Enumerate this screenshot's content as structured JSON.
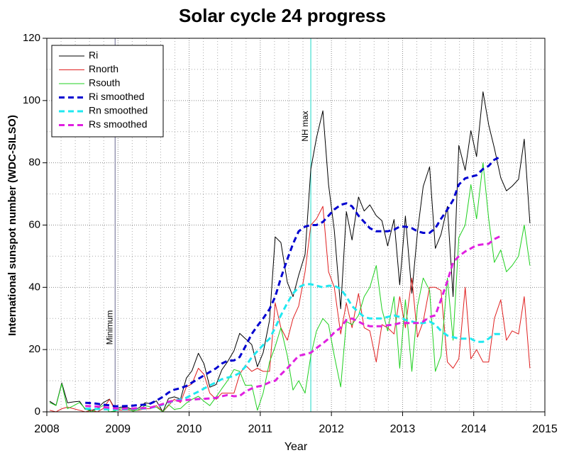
{
  "chart_data": {
    "type": "line",
    "title": "Solar cycle 24 progress",
    "x_label": "Year",
    "y_label": "International sunspot number (WDC-SILSO)",
    "xlim": [
      2008,
      2015
    ],
    "xticks": [
      2008,
      2009,
      2010,
      2011,
      2012,
      2013,
      2014,
      2015
    ],
    "ylim": [
      0,
      120
    ],
    "yticks": [
      0,
      20,
      40,
      60,
      80,
      100,
      120
    ],
    "grid": true,
    "minor_subdivisions": {
      "x": 5,
      "y": 2
    },
    "legend": "upper left",
    "annotations": [
      {
        "x": 2008.96,
        "label": "Minimum",
        "color": "#8080a0"
      },
      {
        "x": 2011.71,
        "label": "NH max",
        "color": "#40e0d0"
      }
    ],
    "x": [
      2008.04,
      2008.13,
      2008.21,
      2008.29,
      2008.38,
      2008.46,
      2008.54,
      2008.63,
      2008.71,
      2008.79,
      2008.88,
      2008.96,
      2009.04,
      2009.13,
      2009.21,
      2009.29,
      2009.38,
      2009.46,
      2009.54,
      2009.63,
      2009.71,
      2009.79,
      2009.88,
      2009.96,
      2010.04,
      2010.13,
      2010.21,
      2010.29,
      2010.38,
      2010.46,
      2010.54,
      2010.63,
      2010.71,
      2010.79,
      2010.88,
      2010.96,
      2011.04,
      2011.13,
      2011.21,
      2011.29,
      2011.38,
      2011.46,
      2011.54,
      2011.63,
      2011.71,
      2011.79,
      2011.88,
      2011.96,
      2012.04,
      2012.13,
      2012.21,
      2012.29,
      2012.38,
      2012.46,
      2012.54,
      2012.63,
      2012.71,
      2012.79,
      2012.88,
      2012.96,
      2013.04,
      2013.13,
      2013.21,
      2013.29,
      2013.38,
      2013.46,
      2013.54,
      2013.63,
      2013.71,
      2013.79,
      2013.88,
      2013.96,
      2014.04,
      2014.13,
      2014.21,
      2014.29,
      2014.38,
      2014.46,
      2014.54,
      2014.63,
      2014.71,
      2014.79
    ],
    "series": [
      {
        "name": "Ri",
        "color": "#000000",
        "style": "solid",
        "values": [
          3.4,
          2.1,
          9.3,
          2.9,
          3.2,
          3.4,
          0.8,
          0.5,
          1.1,
          2.9,
          4.1,
          0.8,
          1.5,
          1.4,
          0.7,
          1.2,
          2.9,
          2.6,
          3.5,
          0.0,
          4.3,
          4.8,
          4.1,
          10.8,
          13.2,
          18.8,
          15.4,
          7.9,
          8.8,
          13.5,
          16.1,
          19.6,
          25.2,
          23.5,
          21.6,
          14.5,
          19.0,
          29.4,
          56.2,
          54.4,
          41.6,
          37.0,
          43.9,
          50.6,
          78.0,
          88.0,
          96.7,
          73.0,
          58.3,
          33.1,
          64.3,
          55.2,
          69.0,
          64.5,
          66.5,
          63.0,
          61.4,
          53.3,
          61.8,
          40.8,
          62.9,
          38.1,
          57.9,
          72.4,
          78.7,
          52.5,
          57.0,
          66.0,
          37.0,
          85.6,
          77.6,
          90.3,
          82.0,
          102.8,
          92.2,
          84.7,
          75.2,
          71.0,
          72.5,
          74.7,
          87.6,
          60.6
        ]
      },
      {
        "name": "Rnorth",
        "color": "#e02020",
        "style": "solid",
        "values": [
          0.5,
          0,
          1,
          1.5,
          1,
          0.5,
          0,
          0.5,
          0,
          1,
          4,
          0.5,
          0.5,
          0.5,
          0.5,
          0.5,
          1,
          1,
          2,
          0,
          2,
          4,
          3,
          8,
          9,
          14,
          12,
          6,
          4,
          6,
          6,
          6,
          12,
          15,
          13,
          14,
          13,
          13,
          35,
          27,
          23,
          30,
          34,
          45,
          60,
          62,
          66,
          45,
          40,
          25,
          35,
          27,
          38,
          27,
          26,
          16,
          28,
          27,
          25,
          37,
          27,
          43,
          24,
          29,
          40,
          40,
          39,
          16,
          14,
          17,
          40,
          17,
          20,
          16,
          16,
          30,
          36,
          23,
          26,
          25,
          37,
          14
        ]
      },
      {
        "name": "Rsouth",
        "color": "#20d020",
        "style": "solid",
        "values": [
          3,
          2,
          9,
          1,
          2,
          3,
          1,
          0,
          1,
          2,
          0,
          0.3,
          1,
          1,
          0.2,
          0.7,
          2,
          1.6,
          1.5,
          0,
          2.3,
          0.8,
          1.1,
          2.8,
          4,
          5,
          3.4,
          2,
          4.8,
          7.5,
          10,
          13.6,
          13,
          8.5,
          8.6,
          0.5,
          6,
          16,
          21,
          27,
          18,
          7,
          10,
          6,
          18,
          26,
          30,
          28,
          18,
          8,
          29,
          28,
          31,
          37,
          40,
          47,
          33,
          26,
          37,
          14,
          36,
          13,
          34,
          43,
          39,
          13,
          18,
          43,
          23,
          56,
          60,
          73,
          62,
          80,
          62,
          48,
          52,
          45,
          47,
          50,
          60,
          47
        ]
      },
      {
        "name": "Ri smoothed",
        "color": "#0000d0",
        "style": "dashed",
        "values": [
          null,
          null,
          null,
          null,
          null,
          null,
          2.9,
          2.8,
          2.6,
          2.3,
          2.1,
          1.8,
          1.8,
          1.9,
          2.0,
          2.2,
          2.3,
          2.7,
          3.6,
          4.8,
          6.2,
          7.1,
          7.6,
          8.3,
          9.4,
          10.6,
          11.7,
          12.8,
          14.0,
          15.5,
          16.4,
          16.5,
          17.6,
          21.0,
          25.0,
          27.6,
          30.0,
          33.0,
          37.0,
          43.0,
          49.0,
          54.0,
          58.0,
          59.5,
          60.0,
          60.0,
          61.0,
          63.0,
          65.0,
          66.5,
          67.0,
          66.0,
          63.0,
          61.0,
          59.0,
          58.0,
          58.0,
          58.0,
          58.5,
          59.5,
          59.5,
          59.0,
          58.0,
          57.5,
          57.5,
          59.0,
          62.0,
          65.0,
          68.0,
          73.0,
          75.0,
          75.5,
          76.0,
          78.0,
          79.0,
          81.0,
          82.0,
          null,
          null,
          null,
          null,
          null
        ]
      },
      {
        "name": "Rn smoothed",
        "color": "#20e8f0",
        "style": "dashed",
        "values": [
          null,
          null,
          null,
          null,
          null,
          null,
          1.0,
          1.0,
          0.9,
          0.8,
          0.8,
          0.7,
          0.8,
          0.8,
          0.9,
          1.0,
          1.1,
          1.3,
          1.7,
          2.3,
          3.0,
          3.5,
          4.0,
          4.5,
          5.5,
          6.5,
          7.5,
          8.5,
          9.5,
          10.5,
          11.0,
          11.5,
          12.5,
          14.5,
          17.5,
          19.5,
          21.5,
          23.5,
          27.0,
          31.0,
          35.0,
          38.0,
          40.0,
          41.0,
          41.0,
          40.5,
          40.0,
          40.5,
          40.5,
          39.5,
          37.0,
          34.0,
          32.0,
          30.5,
          30.0,
          30.0,
          30.0,
          30.5,
          31.0,
          30.5,
          29.5,
          29.0,
          28.5,
          28.5,
          29.0,
          28.0,
          26.0,
          24.5,
          24.0,
          23.5,
          23.5,
          23.5,
          22.5,
          22.5,
          23.5,
          25.0,
          25.0,
          null,
          null,
          null,
          null,
          null
        ]
      },
      {
        "name": "Rs smoothed",
        "color": "#e020e0",
        "style": "dashed",
        "values": [
          null,
          null,
          null,
          null,
          null,
          null,
          1.9,
          1.8,
          1.7,
          1.5,
          1.3,
          1.1,
          1.0,
          1.1,
          1.1,
          1.2,
          1.2,
          1.4,
          1.9,
          2.5,
          3.2,
          3.6,
          3.6,
          3.8,
          3.9,
          4.1,
          4.2,
          4.3,
          4.5,
          5.0,
          5.4,
          5.0,
          5.1,
          6.5,
          7.5,
          8.1,
          8.5,
          9.5,
          10.0,
          12.0,
          14.0,
          16.0,
          18.0,
          18.5,
          19.0,
          20.5,
          22.0,
          23.5,
          25.5,
          27.0,
          29.5,
          30.0,
          29.0,
          28.0,
          27.5,
          27.5,
          27.5,
          27.8,
          28.0,
          28.5,
          28.5,
          28.5,
          28.5,
          29.0,
          30.5,
          31.0,
          36.0,
          42.0,
          48.0,
          50.0,
          51.5,
          52.5,
          53.5,
          53.8,
          54.0,
          55.5,
          56.5,
          null,
          null,
          null,
          null,
          null
        ]
      }
    ]
  }
}
